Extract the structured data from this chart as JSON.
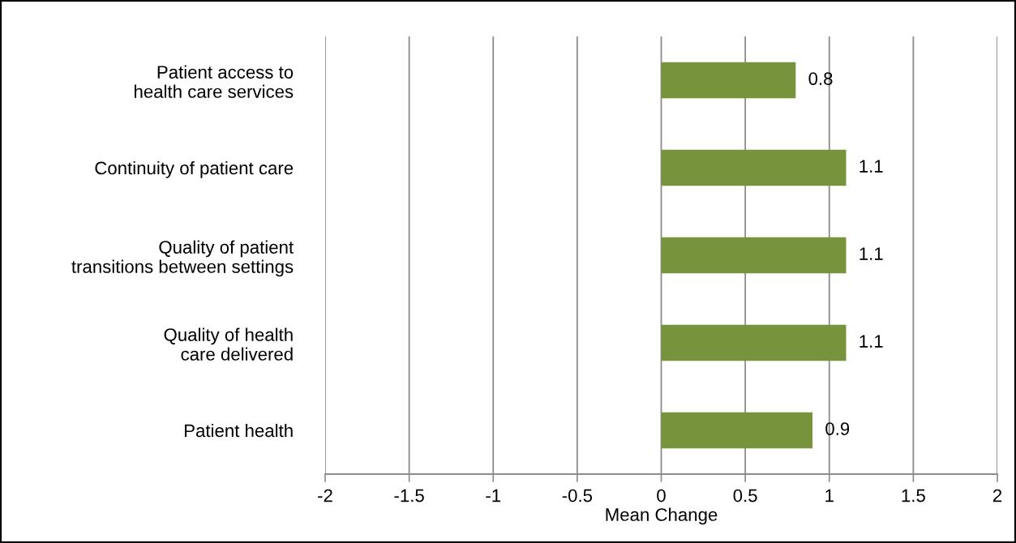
{
  "chart_data": {
    "type": "bar",
    "orientation": "horizontal",
    "categories": [
      "Patient access to\nhealth care services",
      "Continuity of patient care",
      "Quality of patient\ntransitions between settings",
      "Quality of health\ncare delivered",
      "Patient health"
    ],
    "values": [
      0.8,
      1.1,
      1.1,
      1.1,
      0.9
    ],
    "color": "#77933c",
    "xlabel": "Mean Change",
    "xlim": [
      -2,
      2
    ],
    "xticks": [
      -2,
      -1.5,
      -1,
      -0.5,
      0,
      0.5,
      1,
      1.5,
      2
    ],
    "grid": "x",
    "data_labels": true
  }
}
